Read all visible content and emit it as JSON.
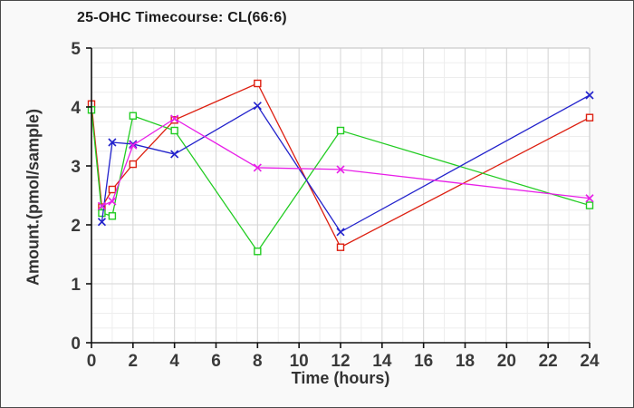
{
  "window": {
    "outer_background": "#f9f9f9",
    "border_color": "#4a4a4a"
  },
  "chart_data": {
    "type": "line",
    "title": "25-OHC Timecourse: CL(66:6)",
    "xlabel": "Time (hours)",
    "ylabel": "Amount.(pmol/sample)",
    "xlim": [
      0,
      24
    ],
    "ylim": [
      0,
      5
    ],
    "x_ticks": [
      0,
      2,
      4,
      6,
      8,
      10,
      12,
      14,
      16,
      18,
      20,
      22,
      24
    ],
    "y_ticks": [
      0,
      1,
      2,
      3,
      4,
      5
    ],
    "grid": "major+minor, minor x every 1h, minor y every 0.25",
    "legend_position": "none",
    "series": [
      {
        "name": "red-squares",
        "color": "#dd1f10",
        "marker": "square",
        "x": [
          0,
          0.5,
          1,
          2,
          4,
          8,
          12,
          24
        ],
        "y": [
          4.05,
          2.3,
          2.6,
          3.03,
          3.78,
          4.4,
          1.62,
          3.82
        ]
      },
      {
        "name": "green-squares",
        "color": "#22cc22",
        "marker": "square",
        "x": [
          0,
          0.5,
          1,
          2,
          4,
          8,
          12,
          24
        ],
        "y": [
          3.95,
          2.2,
          2.15,
          3.85,
          3.6,
          1.55,
          3.6,
          2.33
        ]
      },
      {
        "name": "blue-crosses",
        "color": "#2222cc",
        "marker": "x",
        "x": [
          0.5,
          1,
          2,
          4,
          8,
          12,
          24
        ],
        "y": [
          2.05,
          3.4,
          3.37,
          3.2,
          4.02,
          1.88,
          4.2
        ]
      },
      {
        "name": "magenta-crosses",
        "color": "#e81ee8",
        "marker": "x",
        "x": [
          0.5,
          1,
          2,
          4,
          8,
          12,
          24
        ],
        "y": [
          2.32,
          2.4,
          3.35,
          3.8,
          2.97,
          2.94,
          2.45
        ]
      }
    ],
    "style": {
      "plot_background": "#ffffff",
      "grid_minor_color": "#ededed",
      "grid_major_color": "#d6d6d6",
      "plot_border_color": "#cccccc",
      "axis_color": "#111111",
      "tick_label_color": "#3a3a3a"
    }
  }
}
